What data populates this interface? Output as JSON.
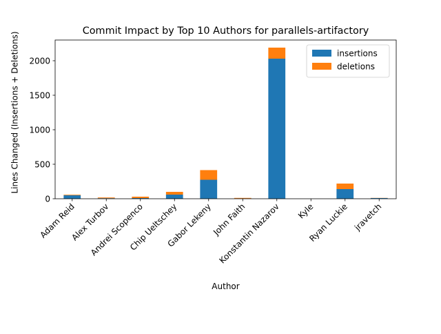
{
  "chart_data": {
    "type": "bar",
    "stacked": true,
    "title": "Commit Impact by Top 10 Authors for parallels-artifactory",
    "xlabel": "Author",
    "ylabel": "Lines Changed (Insertions + Deletions)",
    "ylim": [
      0,
      2300
    ],
    "yticks": [
      0,
      500,
      1000,
      1500,
      2000
    ],
    "grid": false,
    "legend_position": "top-right",
    "categories": [
      "Adam Reid",
      "Alex Turbov",
      "Andrei Scopenco",
      "Chip Ueltschey",
      "Gabor Lekeny",
      "John Faith",
      "Konstantin Nazarov",
      "Kyle",
      "Ryan Luckie",
      "jravetch"
    ],
    "series": [
      {
        "name": "insertions",
        "color": "#1f77b4",
        "values": [
          50,
          8,
          10,
          60,
          275,
          4,
          2030,
          0,
          140,
          10
        ]
      },
      {
        "name": "deletions",
        "color": "#ff7f0e",
        "values": [
          8,
          10,
          20,
          40,
          140,
          8,
          160,
          0,
          80,
          2
        ]
      }
    ]
  }
}
